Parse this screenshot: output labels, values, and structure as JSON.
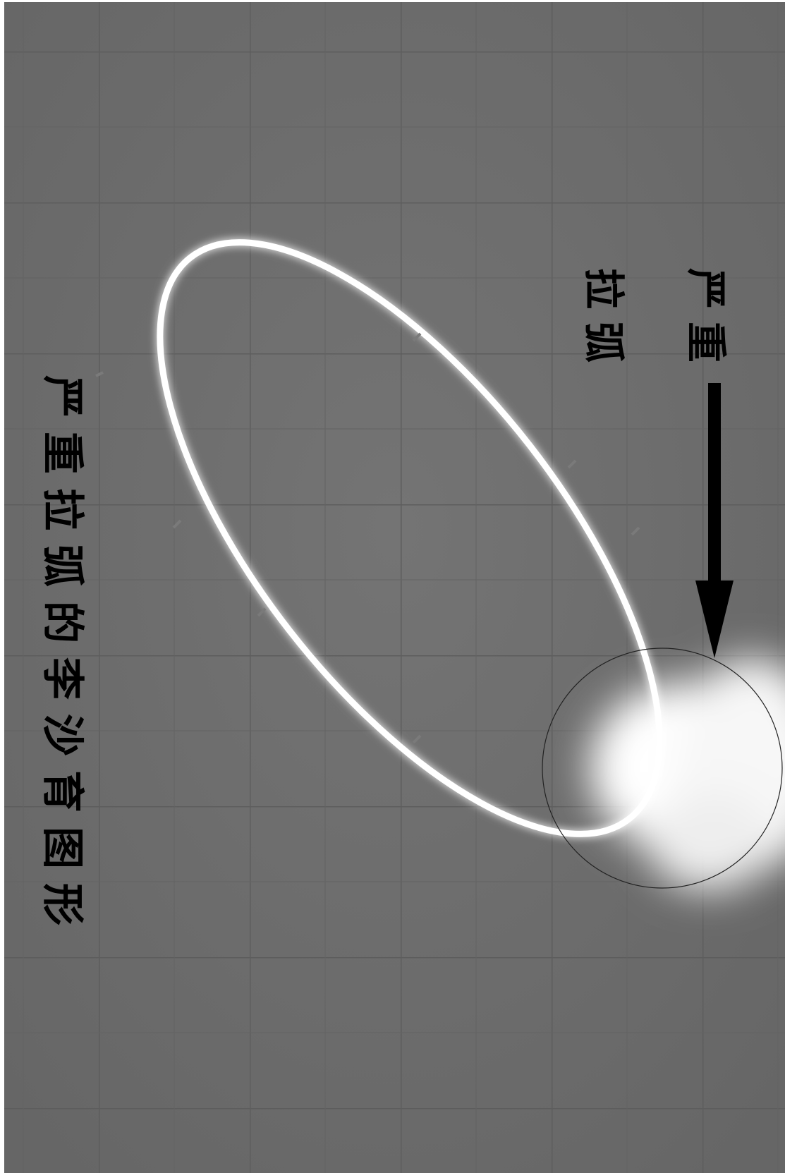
{
  "image": {
    "description_colors": {
      "background": "#6b6b6b",
      "grid_line": "#5e5e5e",
      "ring": "#ffffff",
      "glow": "#f4f4f4",
      "arrow": "#000000"
    }
  },
  "annotations": {
    "arrow_label_line1": "严重",
    "arrow_label_line2": "拉弧",
    "caption": "严重拉弧的李沙育图形"
  }
}
